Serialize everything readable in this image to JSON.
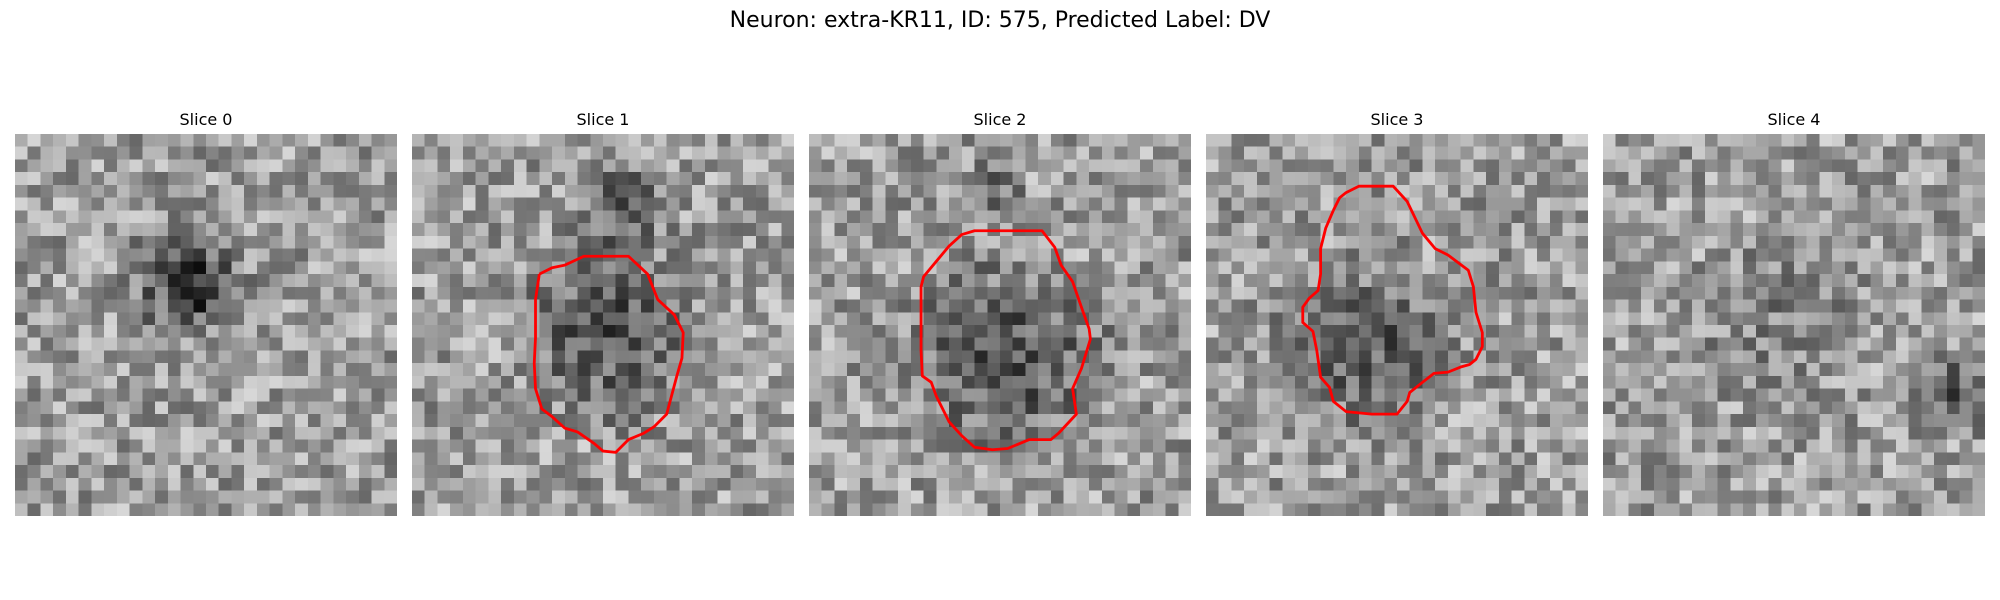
{
  "figure": {
    "title": "Neuron: extra-KR11, ID: 575, Predicted Label: DV"
  },
  "panels": [
    {
      "title": "Slice 0",
      "has_outline": false,
      "outline_color": "#ff0000"
    },
    {
      "title": "Slice 1",
      "has_outline": true,
      "outline_color": "#ff0000"
    },
    {
      "title": "Slice 2",
      "has_outline": true,
      "outline_color": "#ff0000"
    },
    {
      "title": "Slice 3",
      "has_outline": true,
      "outline_color": "#ff0000"
    },
    {
      "title": "Slice 4",
      "has_outline": false,
      "outline_color": "#ff0000"
    }
  ],
  "image": {
    "colormap": "grayscale",
    "grid_cells": 30
  }
}
